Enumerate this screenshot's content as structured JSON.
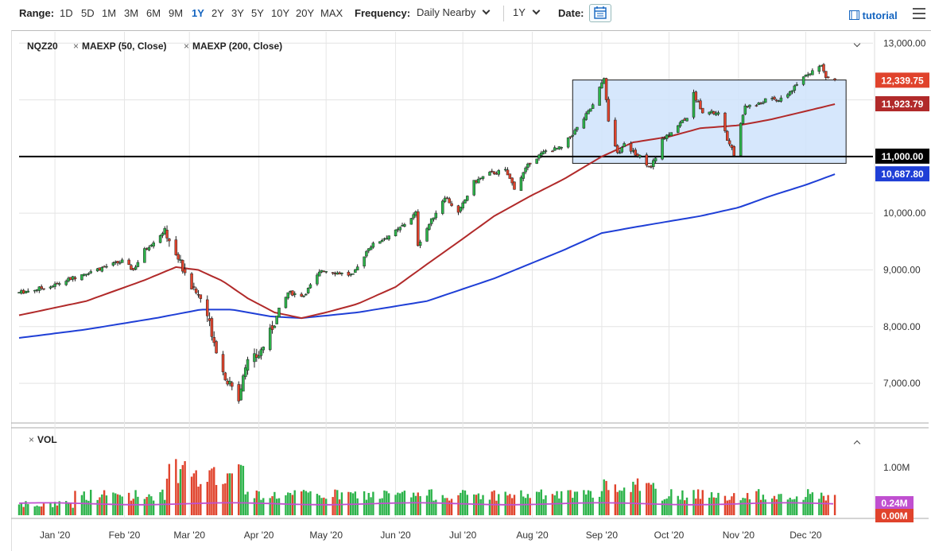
{
  "toolbar": {
    "range_label": "Range:",
    "ranges": [
      "1D",
      "5D",
      "1M",
      "3M",
      "6M",
      "9M",
      "1Y",
      "2Y",
      "3Y",
      "5Y",
      "10Y",
      "20Y",
      "MAX"
    ],
    "active_range": "1Y",
    "frequency_label": "Frequency:",
    "frequency_value": "Daily Nearby",
    "period_value": "1Y",
    "date_label": "Date:",
    "tutorial_label": "tutorial"
  },
  "legend": {
    "symbol": "NQZ20",
    "ma50": "MAEXP (50, Close)",
    "ma200": "MAEXP (200, Close)",
    "vol": "VOL"
  },
  "colors": {
    "up": "#2cb34a",
    "down": "#e0432c",
    "ma50": "#b12a2a",
    "ma200": "#1f3fd6",
    "box_fill": "#cfe3fb",
    "box_stroke": "#1a1a1a",
    "vol_avg": "#c04fd0"
  },
  "chart_data": {
    "type": "candlestick",
    "symbol": "NQZ20",
    "y_axis": {
      "min": 6300,
      "max": 13200,
      "ticks": [
        7000,
        8000,
        9000,
        10000,
        11000,
        12000,
        13000
      ],
      "tick_labels": [
        "7,000.00",
        "8,000.00",
        "9,000.00",
        "10,000.00",
        "11,000.00",
        "12,000.00",
        "13,000.00"
      ]
    },
    "x_axis": {
      "start": "2019-12-16",
      "end": "2020-12-31",
      "ticks": [
        {
          "label": "Jan '20",
          "date": "2020-01-01"
        },
        {
          "label": "Feb '20",
          "date": "2020-02-01"
        },
        {
          "label": "Mar '20",
          "date": "2020-03-01"
        },
        {
          "label": "Apr '20",
          "date": "2020-04-01"
        },
        {
          "label": "May '20",
          "date": "2020-05-01"
        },
        {
          "label": "Jun '20",
          "date": "2020-06-01"
        },
        {
          "label": "Jul '20",
          "date": "2020-07-01"
        },
        {
          "label": "Aug '20",
          "date": "2020-08-01"
        },
        {
          "label": "Sep '20",
          "date": "2020-09-01"
        },
        {
          "label": "Oct '20",
          "date": "2020-10-01"
        },
        {
          "label": "Nov '20",
          "date": "2020-11-01"
        },
        {
          "label": "Dec '20",
          "date": "2020-12-01"
        }
      ]
    },
    "price_path": [
      [
        "2019-12-16",
        8600
      ],
      [
        "2019-12-31",
        8720
      ],
      [
        "2020-01-15",
        8950
      ],
      [
        "2020-01-31",
        9150
      ],
      [
        "2020-02-05",
        9000
      ],
      [
        "2020-02-10",
        9350
      ],
      [
        "2020-02-19",
        9700
      ],
      [
        "2020-02-24",
        9300
      ],
      [
        "2020-03-02",
        8700
      ],
      [
        "2020-03-06",
        8500
      ],
      [
        "2020-03-09",
        8200
      ],
      [
        "2020-03-12",
        7750
      ],
      [
        "2020-03-16",
        7200
      ],
      [
        "2020-03-20",
        6900
      ],
      [
        "2020-03-23",
        6750
      ],
      [
        "2020-03-26",
        7350
      ],
      [
        "2020-04-01",
        7500
      ],
      [
        "2020-04-06",
        7900
      ],
      [
        "2020-04-14",
        8600
      ],
      [
        "2020-04-21",
        8550
      ],
      [
        "2020-04-29",
        9000
      ],
      [
        "2020-05-13",
        8900
      ],
      [
        "2020-05-20",
        9400
      ],
      [
        "2020-06-02",
        9700
      ],
      [
        "2020-06-10",
        10000
      ],
      [
        "2020-06-11",
        9450
      ],
      [
        "2020-06-23",
        10300
      ],
      [
        "2020-06-29",
        10000
      ],
      [
        "2020-07-06",
        10550
      ],
      [
        "2020-07-13",
        10700
      ],
      [
        "2020-07-20",
        10750
      ],
      [
        "2020-07-24",
        10450
      ],
      [
        "2020-07-31",
        10900
      ],
      [
        "2020-08-07",
        11100
      ],
      [
        "2020-08-14",
        11150
      ],
      [
        "2020-08-21",
        11500
      ],
      [
        "2020-08-28",
        11900
      ],
      [
        "2020-09-02",
        12400
      ],
      [
        "2020-09-04",
        11600
      ],
      [
        "2020-09-08",
        11050
      ],
      [
        "2020-09-11",
        11200
      ],
      [
        "2020-09-18",
        11000
      ],
      [
        "2020-09-23",
        10800
      ],
      [
        "2020-09-28",
        11300
      ],
      [
        "2020-10-09",
        11700
      ],
      [
        "2020-10-12",
        12100
      ],
      [
        "2020-10-16",
        11800
      ],
      [
        "2020-10-23",
        11750
      ],
      [
        "2020-10-28",
        11200
      ],
      [
        "2020-10-30",
        11050
      ],
      [
        "2020-11-04",
        11900
      ],
      [
        "2020-11-09",
        11900
      ],
      [
        "2020-11-13",
        12000
      ],
      [
        "2020-11-20",
        12000
      ],
      [
        "2020-11-27",
        12250
      ],
      [
        "2020-12-01",
        12450
      ],
      [
        "2020-12-08",
        12600
      ],
      [
        "2020-12-10",
        12400
      ],
      [
        "2020-12-14",
        12340
      ]
    ],
    "ma50_path": [
      [
        "2019-12-16",
        8200
      ],
      [
        "2020-01-15",
        8450
      ],
      [
        "2020-02-10",
        8820
      ],
      [
        "2020-02-24",
        9050
      ],
      [
        "2020-03-05",
        9000
      ],
      [
        "2020-03-16",
        8800
      ],
      [
        "2020-03-27",
        8500
      ],
      [
        "2020-04-08",
        8250
      ],
      [
        "2020-04-20",
        8150
      ],
      [
        "2020-05-01",
        8250
      ],
      [
        "2020-05-15",
        8400
      ],
      [
        "2020-06-01",
        8700
      ],
      [
        "2020-06-15",
        9100
      ],
      [
        "2020-07-01",
        9550
      ],
      [
        "2020-07-15",
        9950
      ],
      [
        "2020-07-31",
        10300
      ],
      [
        "2020-08-15",
        10600
      ],
      [
        "2020-09-01",
        11000
      ],
      [
        "2020-09-15",
        11250
      ],
      [
        "2020-10-01",
        11350
      ],
      [
        "2020-10-15",
        11500
      ],
      [
        "2020-11-01",
        11550
      ],
      [
        "2020-11-15",
        11650
      ],
      [
        "2020-12-01",
        11800
      ],
      [
        "2020-12-14",
        11924
      ]
    ],
    "ma200_path": [
      [
        "2019-12-16",
        7800
      ],
      [
        "2020-01-15",
        7950
      ],
      [
        "2020-02-15",
        8150
      ],
      [
        "2020-03-06",
        8300
      ],
      [
        "2020-03-20",
        8300
      ],
      [
        "2020-04-06",
        8180
      ],
      [
        "2020-04-20",
        8150
      ],
      [
        "2020-05-15",
        8250
      ],
      [
        "2020-06-15",
        8450
      ],
      [
        "2020-07-15",
        8850
      ],
      [
        "2020-08-15",
        9350
      ],
      [
        "2020-09-01",
        9650
      ],
      [
        "2020-09-15",
        9750
      ],
      [
        "2020-10-15",
        9950
      ],
      [
        "2020-11-01",
        10100
      ],
      [
        "2020-11-15",
        10300
      ],
      [
        "2020-12-01",
        10500
      ],
      [
        "2020-12-14",
        10688
      ]
    ],
    "rectangle": {
      "start": "2020-08-19",
      "end": "2020-12-19",
      "low": 10880,
      "high": 12350
    },
    "horizontal_line": 11000,
    "price_labels": [
      {
        "value": 12339.75,
        "text": "12,339.75",
        "color": "#e0432c"
      },
      {
        "value": 11923.79,
        "text": "11,923.79",
        "color": "#b12a2a"
      },
      {
        "value": 11000.0,
        "text": "11,000.00",
        "color": "#000000"
      },
      {
        "value": 10687.8,
        "text": "10,687.80",
        "color": "#1f3fd6"
      }
    ],
    "volume_panel": {
      "tick_label": "1.00M",
      "tick_value": 1000000,
      "labels": [
        {
          "text": "0.24M",
          "color": "#c04fd0"
        },
        {
          "text": "0.00M",
          "color": "#e0432c"
        }
      ]
    }
  }
}
